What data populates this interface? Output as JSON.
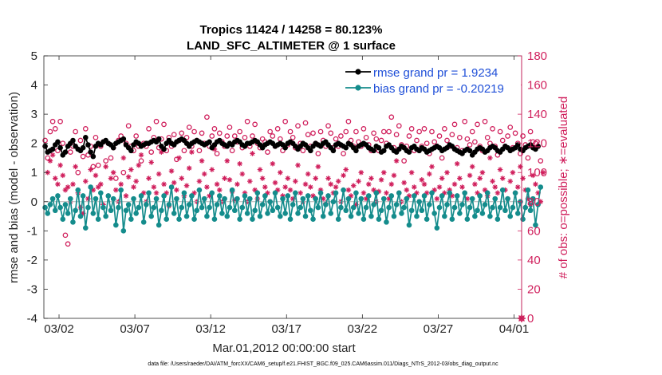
{
  "chart_data": {
    "type": "line",
    "title_line1": "Tropics 11424 / 14258 = 80.123%",
    "title_line2": "LAND_SFC_ALTIMETER @ 1 surface",
    "xlabel": "Mar.01,2012 00:00:00 start",
    "ylabel_left": "rmse and bias (model - observation)",
    "ylabel_right": "# of obs: o=possible; ∗=evaluated",
    "footer": "data file: /Users/raeder/DAI/ATM_forcXX/CAM6_setup/f.e21.FHIST_BGC.f09_025.CAM6assim.011/Diags_NTrS_2012-03/obs_diag_output.nc",
    "x_range_days": [
      0,
      31.5
    ],
    "x_ticks": [
      {
        "day": 1,
        "label": "03/02"
      },
      {
        "day": 6,
        "label": "03/07"
      },
      {
        "day": 11,
        "label": "03/12"
      },
      {
        "day": 16,
        "label": "03/17"
      },
      {
        "day": 21,
        "label": "03/22"
      },
      {
        "day": 26,
        "label": "03/27"
      },
      {
        "day": 31,
        "label": "04/01"
      }
    ],
    "ylim_left": [
      -4,
      5
    ],
    "y_ticks_left": [
      "-4",
      "-3",
      "-2",
      "-1",
      "0",
      "1",
      "2",
      "3",
      "4",
      "5"
    ],
    "ylim_right": [
      0,
      180
    ],
    "y_ticks_right": [
      "0",
      "20",
      "40",
      "60",
      "80",
      "100",
      "120",
      "140",
      "160",
      "180"
    ],
    "legend": [
      {
        "name": "rmse grand pr = 1.9234",
        "color": "#000000"
      },
      {
        "name": "bias grand pr = -0.20219",
        "color": "#148c8c"
      }
    ],
    "colors": {
      "rmse": "#000000",
      "bias": "#148c8c",
      "obs": "#d01f5c",
      "legend_text": "#1f4fd8",
      "zero_line": "#b4b4b4"
    },
    "samples_per_day": 6,
    "series": [
      {
        "name": "rmse",
        "axis": "left",
        "values": [
          1.9,
          1.7,
          1.75,
          1.8,
          1.95,
          2.05,
          1.85,
          1.6,
          1.7,
          1.9,
          2.0,
          2.1,
          1.9,
          1.8,
          1.75,
          1.85,
          2.2,
          1.95,
          1.7,
          1.55,
          1.9,
          2.0,
          1.95,
          2.05,
          2.1,
          2.0,
          1.95,
          1.85,
          2.0,
          2.05,
          2.1,
          2.15,
          1.95,
          1.85,
          1.75,
          1.95,
          2.05,
          2.0,
          1.9,
          1.95,
          2.0,
          2.0,
          2.05,
          2.1,
          2.05,
          2.15,
          1.9,
          1.8,
          2.0,
          2.1,
          2.0,
          1.95,
          2.05,
          2.1,
          2.15,
          2.1,
          2.0,
          1.9,
          2.0,
          2.05,
          2.1,
          2.05,
          2.0,
          1.95,
          2.0,
          2.05,
          1.85,
          1.95,
          2.05,
          2.1,
          2.0,
          1.95,
          1.9,
          2.0,
          1.95,
          2.05,
          2.1,
          2.05,
          1.95,
          1.9,
          2.0,
          2.0,
          2.05,
          2.1,
          2.05,
          1.95,
          1.85,
          1.95,
          2.0,
          2.05,
          2.0,
          1.9,
          1.95,
          2.0,
          1.95,
          1.85,
          2.0,
          2.05,
          2.0,
          1.9,
          1.8,
          1.9,
          2.0,
          1.95,
          1.85,
          1.75,
          1.9,
          2.0,
          1.95,
          1.9,
          2.0,
          2.05,
          1.95,
          1.85,
          1.75,
          1.95,
          2.0,
          1.95,
          1.9,
          1.85,
          2.0,
          1.95,
          1.85,
          1.75,
          1.9,
          1.95,
          2.0,
          1.95,
          1.85,
          1.8,
          1.75,
          1.9,
          1.85,
          1.7,
          1.75,
          1.9,
          1.95,
          1.85,
          1.75,
          1.7,
          1.8,
          1.9,
          1.85,
          1.75,
          1.7,
          1.85,
          1.9,
          1.8,
          1.75,
          1.85,
          1.8,
          1.7,
          1.75,
          1.8,
          1.85,
          1.9,
          1.85,
          1.75,
          1.8,
          1.85,
          1.95,
          1.9,
          1.8,
          1.75,
          1.7,
          1.65,
          1.75,
          1.8,
          1.75,
          1.6,
          1.7,
          1.8,
          1.85,
          1.8,
          1.7,
          1.75,
          1.85,
          1.9,
          1.85,
          1.75,
          1.7,
          1.8,
          1.9,
          1.85,
          1.75,
          1.8,
          1.85,
          1.95,
          1.8,
          1.75,
          1.85,
          1.9,
          1.95,
          1.85,
          1.8,
          1.9
        ]
      },
      {
        "name": "bias",
        "axis": "left",
        "values": [
          -0.2,
          -0.4,
          -0.1,
          0.1,
          -0.3,
          0.2,
          -0.2,
          -0.6,
          -0.1,
          -0.4,
          0.1,
          -0.7,
          -0.3,
          0.4,
          -0.5,
          0.2,
          -0.9,
          -0.2,
          0.5,
          -0.4,
          0.1,
          -0.6,
          0.3,
          -0.2,
          -0.5,
          0.2,
          -0.3,
          0.1,
          -0.8,
          -0.2,
          0.4,
          -1.0,
          -0.3,
          -0.1,
          -0.6,
          0.1,
          -0.4,
          -0.2,
          0.2,
          -0.7,
          -0.1,
          0.3,
          -0.5,
          -0.2,
          0.1,
          -0.8,
          -0.3,
          0.2,
          -0.6,
          -0.1,
          0.5,
          -0.4,
          0.1,
          -0.6,
          -0.2,
          0.3,
          -0.5,
          -0.1,
          0.2,
          -0.6,
          -0.3,
          0.4,
          -0.2,
          0.1,
          -0.5,
          -0.2,
          0.3,
          -0.6,
          -0.1,
          0.2,
          -0.4,
          0.1,
          -0.5,
          -0.2,
          0.4,
          -0.3,
          0.1,
          -0.6,
          -0.2,
          0.2,
          -0.4,
          0.1,
          -0.6,
          -0.3,
          0.3,
          -0.5,
          -0.1,
          0.2,
          -0.4,
          0.0,
          -0.3,
          0.3,
          -0.2,
          -0.5,
          0.1,
          -0.4,
          0.2,
          -0.6,
          -0.1,
          0.3,
          -0.4,
          -0.2,
          0.1,
          -0.5,
          0.2,
          -0.3,
          -0.6,
          0.1,
          -0.2,
          0.3,
          -0.5,
          -0.1,
          0.2,
          -0.4,
          0.0,
          0.3,
          -0.6,
          -0.2,
          0.4,
          -0.3,
          0.1,
          -0.5,
          -0.2,
          0.3,
          -0.4,
          0.1,
          -0.6,
          -0.2,
          0.2,
          -0.5,
          -0.1,
          0.3,
          -0.6,
          -0.3,
          0.1,
          -0.7,
          -0.2,
          0.2,
          -0.5,
          -0.1,
          0.3,
          -0.4,
          -0.2,
          0.1,
          -0.8,
          -0.3,
          0.2,
          -0.5,
          0.0,
          -0.3,
          0.2,
          -0.6,
          -0.1,
          0.3,
          -0.4,
          -0.9,
          -0.2,
          0.2,
          -0.5,
          -0.1,
          0.3,
          -0.6,
          -0.2,
          0.2,
          -0.4,
          -0.1,
          0.3,
          -0.6,
          -0.2,
          0.1,
          -0.5,
          -0.3,
          0.2,
          -0.4,
          -0.1,
          0.3,
          -0.5,
          -0.2,
          0.1,
          -0.6,
          -0.2,
          0.4,
          -0.3,
          0.1,
          -0.5,
          -0.2,
          0.3,
          -0.4,
          0.0,
          -0.6,
          -0.2,
          0.4,
          -0.3,
          0.1,
          -0.8,
          -0.1,
          0.5
        ]
      },
      {
        "name": "possible",
        "axis": "right",
        "marker": "circle",
        "values": [
          122,
          110,
          128,
          135,
          130,
          115,
          135,
          120,
          57,
          51,
          114,
          118,
          128,
          100,
          122,
          111,
          130,
          112,
          118,
          104,
          124,
          105,
          118,
          121,
          108,
          120,
          110,
          117,
          96,
          122,
          125,
          100,
          120,
          132,
          118,
          115,
          125,
          118,
          108,
          120,
          118,
          130,
          114,
          124,
          135,
          117,
          123,
          133,
          115,
          124,
          118,
          126,
          109,
          122,
          127,
          115,
          124,
          131,
          118,
          128,
          122,
          115,
          127,
          120,
          138,
          118,
          125,
          130,
          113,
          127,
          121,
          118,
          125,
          131,
          115,
          125,
          121,
          128,
          117,
          124,
          135,
          118,
          125,
          133,
          120,
          117,
          123,
          121,
          114,
          128,
          125,
          118,
          130,
          123,
          115,
          135,
          119,
          128,
          124,
          117,
          132,
          120,
          115,
          134,
          126,
          118,
          127,
          120,
          113,
          128,
          122,
          118,
          132,
          127,
          117,
          123,
          118,
          125,
          113,
          128,
          135,
          122,
          118,
          128,
          121,
          118,
          130,
          124,
          119,
          115,
          127,
          123,
          115,
          122,
          128,
          120,
          128,
          138,
          117,
          126,
          132,
          119,
          108,
          118,
          125,
          130,
          115,
          122,
          128,
          118,
          130,
          120,
          113,
          128,
          121,
          118,
          125,
          110,
          130,
          122,
          118,
          126,
          133,
          117,
          124,
          115,
          135,
          123,
          119,
          128,
          121,
          133,
          118,
          115,
          135,
          124,
          120,
          130,
          118,
          112,
          128,
          122,
          118,
          125,
          131,
          117,
          127,
          120,
          113,
          125,
          119,
          110,
          128,
          121,
          120,
          118,
          108
        ]
      },
      {
        "name": "evaluated",
        "axis": "right",
        "marker": "asterisk",
        "values": [
          118,
          100,
          108,
          112,
          96,
          92,
          105,
          98,
          88,
          90,
          80,
          92,
          104,
          86,
          76,
          72,
          94,
          82,
          102,
          88,
          98,
          90,
          92,
          78,
          104,
          84,
          96,
          100,
          88,
          80,
          92,
          110,
          84,
          97,
          102,
          90,
          94,
          105,
          112,
          86,
          80,
          96,
          107,
          90,
          86,
          99,
          114,
          92,
          86,
          77,
          101,
          93,
          88,
          110,
          96,
          84,
          91,
          103,
          114,
          86,
          80,
          94,
          108,
          99,
          90,
          84,
          102,
          116,
          92,
          88,
          80,
          96,
          108,
          95,
          87,
          81,
          92,
          106,
          99,
          86,
          80,
          94,
          113,
          88,
          82,
          102,
          96,
          90,
          86,
          80,
          106,
          93,
          88,
          100,
          84,
          90,
          96,
          88,
          82,
          94,
          105,
          86,
          80,
          92,
          99,
          90,
          84,
          96,
          104,
          88,
          82,
          79,
          96,
          92,
          86,
          90,
          94,
          80,
          98,
          102,
          88,
          84,
          91,
          78,
          94,
          100,
          86,
          82,
          92,
          96,
          88,
          80,
          87,
          95,
          100,
          86,
          82,
          92,
          98,
          108,
          86,
          80,
          93,
          88,
          84,
          100,
          90,
          86,
          80,
          95,
          92,
          86,
          99,
          104,
          88,
          82,
          90,
          96,
          86,
          100,
          88,
          84,
          92,
          106,
          96,
          90,
          86,
          82,
          98,
          104,
          92,
          86,
          96,
          100,
          88,
          84,
          110,
          94,
          90,
          86,
          102,
          96,
          88,
          82,
          94,
          100,
          86,
          90,
          104,
          96,
          88,
          82,
          78,
          98,
          92,
          86,
          80,
          100
        ]
      }
    ]
  }
}
